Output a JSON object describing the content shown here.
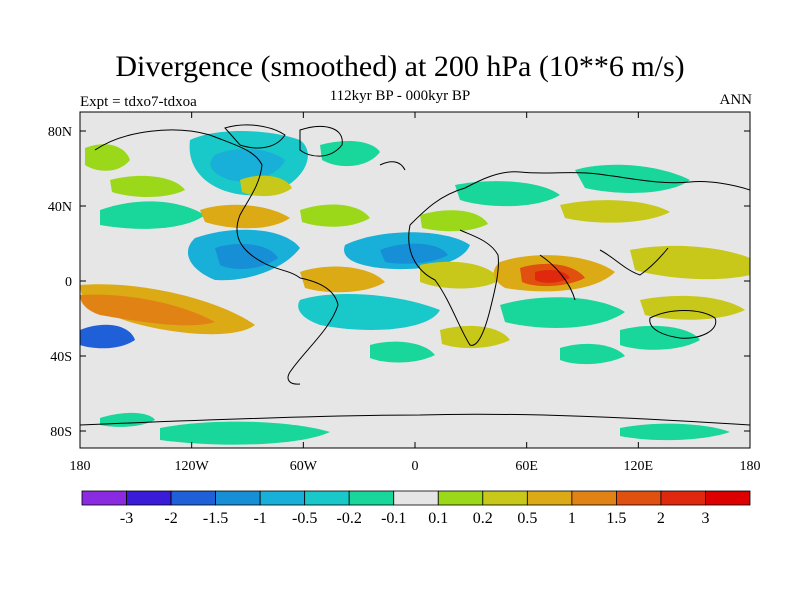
{
  "header": {
    "title": "Divergence (smoothed) at 200 hPa (10**6 m/s)",
    "subtitle": "112kyr BP - 000kyr BP",
    "experiment": "Expt = tdxo7-tdxoa",
    "season": "ANN"
  },
  "map": {
    "x_tick_labels": [
      "180",
      "120W",
      "60W",
      "0",
      "60E",
      "120E",
      "180"
    ],
    "y_tick_labels": [
      "80N",
      "40N",
      "0",
      "40S",
      "80S"
    ],
    "background_color": "#e6e6e6"
  },
  "colorbar": {
    "labels": [
      "-3",
      "-2",
      "-1.5",
      "-1",
      "-0.5",
      "-0.2",
      "-0.1",
      "0.1",
      "0.2",
      "0.5",
      "1",
      "1.5",
      "2",
      "3"
    ],
    "colors": [
      "#8a2be2",
      "#3a1bd8",
      "#1f5fd8",
      "#168fd6",
      "#18b0d8",
      "#19c8c8",
      "#19d69a",
      "#e6e6e6",
      "#9bd81a",
      "#c8c81a",
      "#dcaa14",
      "#e08214",
      "#e0500f",
      "#e0280f",
      "#dd0000"
    ]
  }
}
